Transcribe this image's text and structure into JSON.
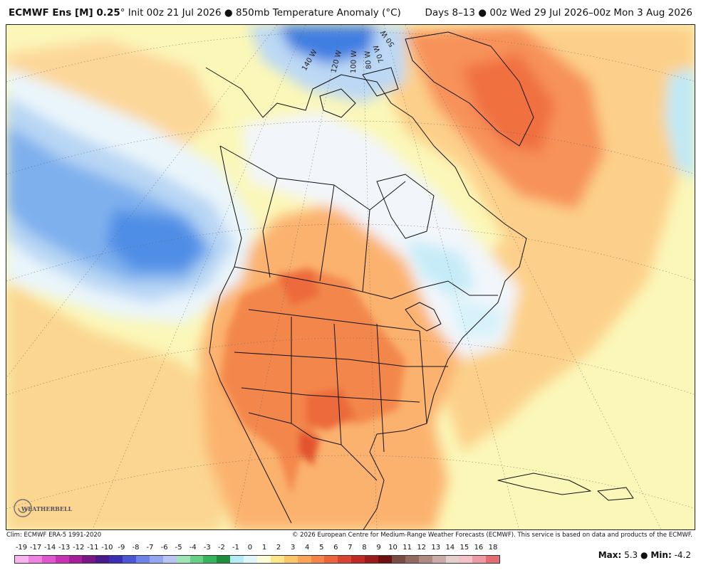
{
  "header": {
    "model": "ECMWF Ens [M] 0.25",
    "degree_mark": "°",
    "init_text": "Init 00z 21 Jul 2026",
    "bullet": "●",
    "field": "850mb Temperature Anomaly (°C)",
    "valid_days": "Days 8–13",
    "valid_range": "00z Wed 29 Jul 2026–00z Mon 3 Aug 2026"
  },
  "map": {
    "longitude_labels": [
      "140 W",
      "120 W",
      "100 W",
      "80 W",
      "70 W",
      "50 W"
    ]
  },
  "logo": {
    "text": "WEATHERBELL"
  },
  "credits": {
    "climo": "Clim: ECMWF ERA-5 1991-2020",
    "copyright": "© 2026 European Centre for Medium-Range Weather Forecasts (ECMWF). This service is based on data and products of the ECMWF."
  },
  "legend": {
    "labels": [
      "-19",
      "-17",
      "-14",
      "-13",
      "-12",
      "-11",
      "-10",
      "-9",
      "-8",
      "-7",
      "-6",
      "-5",
      "-4",
      "-3",
      "-2",
      "-1",
      "0",
      "1",
      "2",
      "3",
      "4",
      "5",
      "6",
      "7",
      "8",
      "9",
      "10",
      "11",
      "12",
      "13",
      "14",
      "15",
      "16",
      "18"
    ],
    "colors": [
      "#f7b3ee",
      "#ef82e0",
      "#e056cf",
      "#c932b7",
      "#a51f9a",
      "#7a1785",
      "#4a1a8c",
      "#3a2fb4",
      "#4a56d6",
      "#6f82e8",
      "#93a6ef",
      "#b7c4f4",
      "#9fe3b6",
      "#66cf86",
      "#37b35a",
      "#1f8e3c",
      "#b6ecf7",
      "#dff6fb",
      "#fbfdd4",
      "#fde58a",
      "#fcc56a",
      "#f9a457",
      "#f3854a",
      "#ec643b",
      "#d94430",
      "#c02a24",
      "#9b1a1a",
      "#6e1010",
      "#7a4b44",
      "#936a62",
      "#ae8a82",
      "#c9aca6",
      "#e3cfcb",
      "#f4c1c8",
      "#ef9aa3",
      "#e56b75"
    ]
  },
  "maxmin": {
    "max_label": "Max:",
    "max_value": "5.3",
    "min_label": "Min:",
    "min_value": "-4.2"
  }
}
